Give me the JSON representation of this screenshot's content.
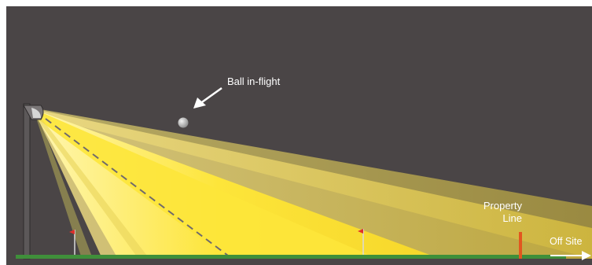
{
  "labels": {
    "ball_in_flight": "Ball in-flight",
    "property_line_1": "Property",
    "property_line_2": "Line",
    "off_site": "Off Site"
  },
  "colors": {
    "background": "#4a4546",
    "ground": "#3f8f3a",
    "property_line": "#e2561f",
    "light_beam_core": "#fde53a",
    "light_beam_outer": "#b8a84a"
  },
  "icons": {
    "light_fixture": "stadium-light-icon",
    "golf_flag": "golf-flag-icon",
    "ball": "golf-ball-icon",
    "pointer": "arrow-icon"
  }
}
